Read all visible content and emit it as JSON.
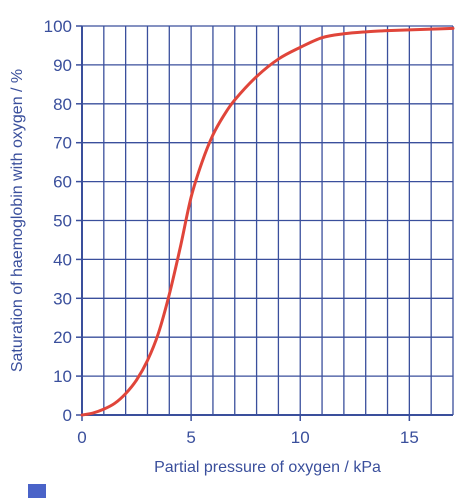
{
  "chart_data": {
    "type": "line",
    "title": "",
    "xlabel": "Partial pressure of oxygen / kPa",
    "ylabel": "Saturation of haemoglobin with oxygen / %",
    "xlim": [
      0,
      17
    ],
    "ylim": [
      0,
      100
    ],
    "x_ticks": [
      0,
      5,
      10,
      15
    ],
    "y_ticks": [
      0,
      10,
      20,
      30,
      40,
      50,
      60,
      70,
      80,
      90,
      100
    ],
    "grid": true,
    "grid_x_step": 1,
    "grid_y_step": 10,
    "series": [
      {
        "x": [
          0,
          0.5,
          1,
          1.5,
          2,
          2.5,
          3,
          3.5,
          4,
          4.5,
          5,
          5.5,
          6,
          6.5,
          7,
          8,
          9,
          10,
          11,
          12,
          13,
          14,
          15,
          16,
          17
        ],
        "y": [
          0,
          0.5,
          1.5,
          3,
          5.5,
          9,
          14,
          21,
          31,
          43,
          56,
          65,
          72,
          77,
          81,
          87,
          91.5,
          94.5,
          97,
          98,
          98.5,
          98.8,
          99,
          99.2,
          99.4
        ]
      }
    ],
    "colors": {
      "axis": "#3a4f9c",
      "grid": "#3a4f9c",
      "curve": "#e0453a",
      "background": "#ffffff"
    }
  }
}
